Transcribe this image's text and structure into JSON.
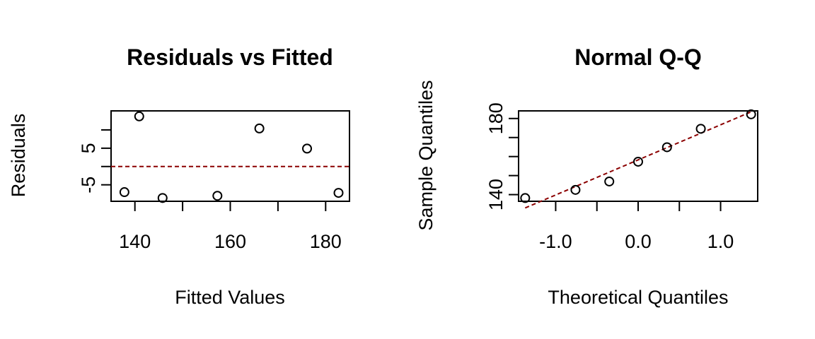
{
  "colors": {
    "reference_line": "#8b0000",
    "points": "#000000"
  },
  "chart_data": [
    {
      "type": "scatter",
      "title": "Residuals vs Fitted",
      "xlabel": "Fitted Values",
      "ylabel": "Residuals",
      "xlim": [
        135,
        185
      ],
      "ylim": [
        -9.5,
        15.2
      ],
      "x_ticks": [
        140,
        150,
        160,
        170,
        180
      ],
      "x_tick_labels": [
        "140",
        "",
        "160",
        "",
        "180"
      ],
      "y_ticks": [
        -5,
        0,
        5,
        10
      ],
      "y_tick_labels": [
        "-5",
        "",
        "5",
        ""
      ],
      "points": [
        {
          "x": 137.8,
          "y": -7.0
        },
        {
          "x": 140.9,
          "y": 13.7
        },
        {
          "x": 145.8,
          "y": -8.6
        },
        {
          "x": 157.3,
          "y": -8.0
        },
        {
          "x": 166.1,
          "y": 10.4
        },
        {
          "x": 176.1,
          "y": 4.9
        },
        {
          "x": 182.7,
          "y": -7.2
        }
      ],
      "reference_line": {
        "type": "horizontal",
        "y": 0,
        "style": "dashed"
      },
      "grid": false
    },
    {
      "type": "scatter",
      "title": "Normal Q-Q",
      "xlabel": "Theoretical Quantiles",
      "ylabel": "Sample Quantiles",
      "xlim": [
        -1.45,
        1.45
      ],
      "ylim": [
        136.5,
        184
      ],
      "x_ticks": [
        -1.0,
        -0.5,
        0.0,
        0.5,
        1.0
      ],
      "x_tick_labels": [
        "-1.0",
        "",
        "0.0",
        "",
        "1.0"
      ],
      "y_ticks": [
        140,
        150,
        160,
        170,
        180
      ],
      "y_tick_labels": [
        "140",
        "",
        "",
        "",
        "180"
      ],
      "points": [
        {
          "x": -1.37,
          "y": 138.2
        },
        {
          "x": -0.76,
          "y": 142.5
        },
        {
          "x": -0.35,
          "y": 146.9
        },
        {
          "x": 0.0,
          "y": 157.3
        },
        {
          "x": 0.35,
          "y": 164.9
        },
        {
          "x": 0.76,
          "y": 174.6
        },
        {
          "x": 1.37,
          "y": 182.2
        }
      ],
      "reference_line": {
        "type": "abline",
        "x1": -1.37,
        "y1": 133.0,
        "x2": 1.37,
        "y2": 183.5,
        "style": "dashed"
      },
      "grid": false
    }
  ]
}
